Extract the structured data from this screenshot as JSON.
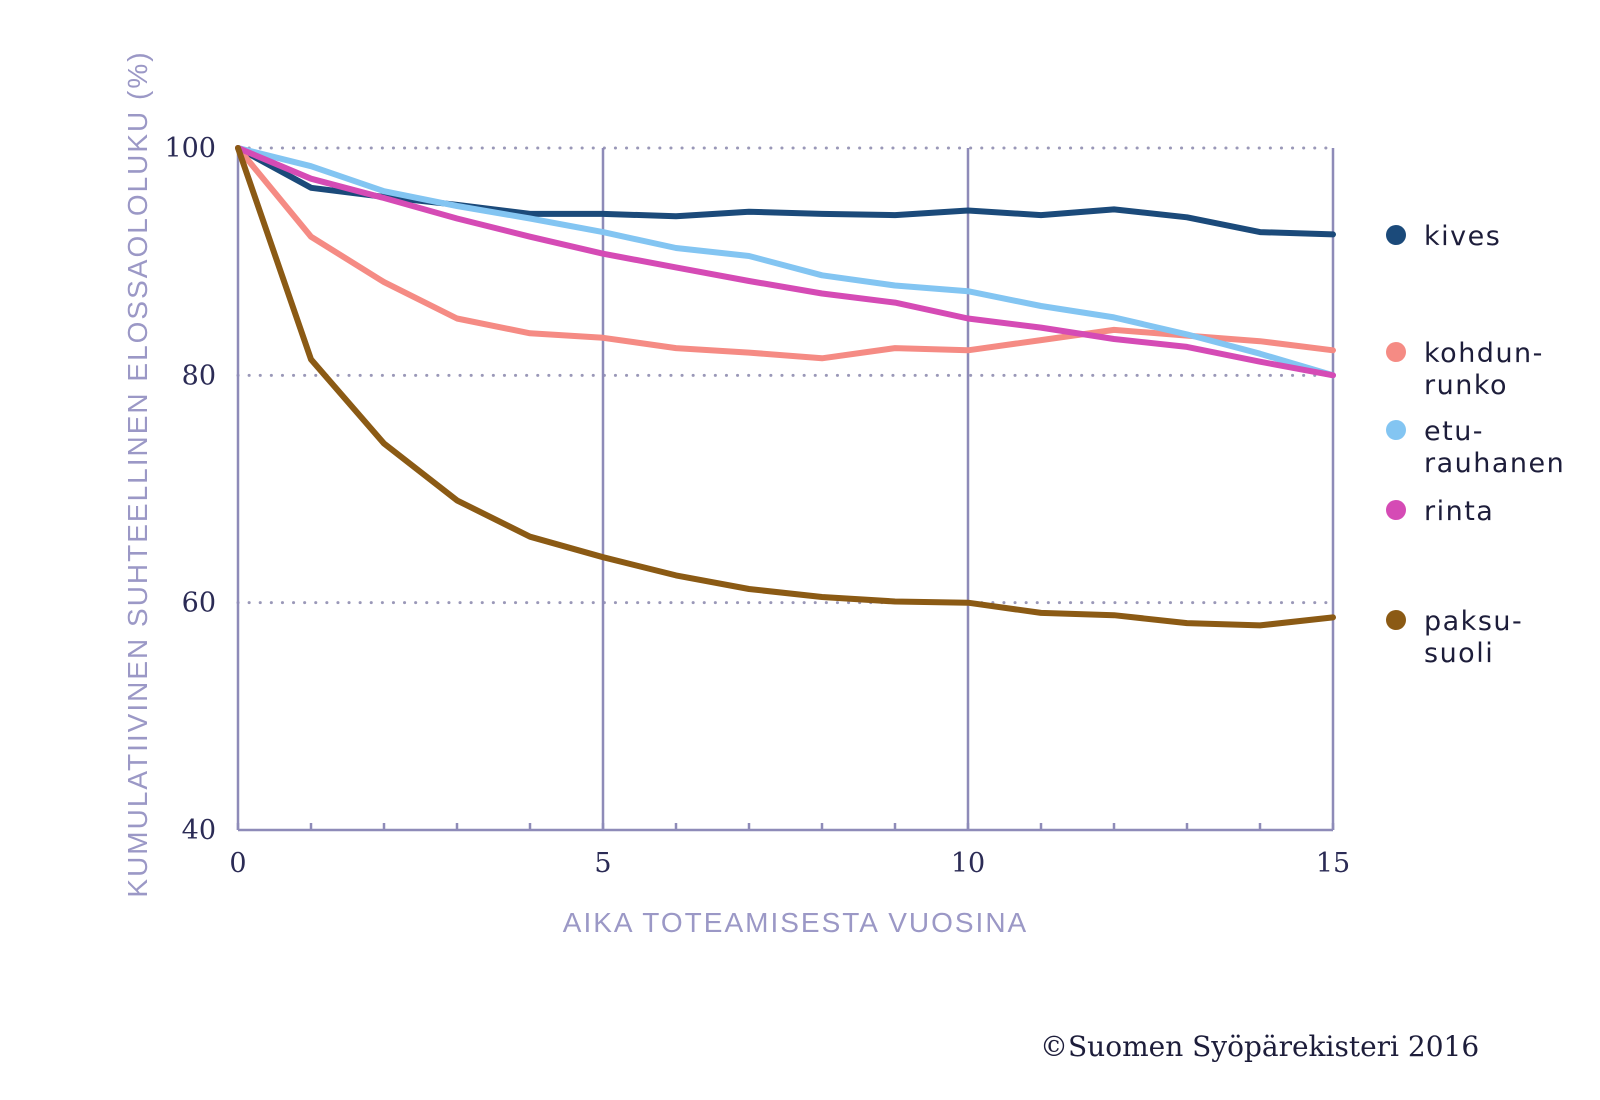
{
  "chart_data": {
    "type": "line",
    "xlabel": "AIKA TOTEAMISESTA VUOSINA",
    "ylabel": "KUMULATIIVINEN SUHTEELLINEN ELOSSAOLOLUKU (%)",
    "xlim": [
      0,
      15
    ],
    "ylim": [
      40,
      100
    ],
    "x_ticks": [
      "0",
      "5",
      "10",
      "15"
    ],
    "y_ticks": [
      "40",
      "60",
      "80",
      "100"
    ],
    "grid": "dotted horizontal at 60, 80, 100; solid vertical at 5, 10, 15",
    "legend_position": "right",
    "x": [
      0,
      1,
      2,
      3,
      4,
      5,
      6,
      7,
      8,
      9,
      10,
      11,
      12,
      13,
      14,
      15
    ],
    "series": [
      {
        "name": "kives",
        "label_lines": [
          "kives"
        ],
        "color": "#1b4a7a",
        "values": [
          100,
          96.5,
          95.7,
          95.0,
          94.2,
          94.2,
          94.0,
          94.4,
          94.2,
          94.1,
          94.5,
          94.1,
          94.6,
          93.9,
          92.6,
          92.4
        ]
      },
      {
        "name": "kohdunrunko",
        "label_lines": [
          "kohdun-",
          "runko"
        ],
        "color": "#f58b84",
        "values": [
          100,
          92.2,
          88.2,
          85.0,
          83.7,
          83.3,
          82.4,
          82.0,
          81.5,
          82.4,
          82.2,
          83.1,
          84.0,
          83.5,
          83.0,
          82.2
        ]
      },
      {
        "name": "eturauhanen",
        "label_lines": [
          "etu-",
          "rauhanen"
        ],
        "color": "#83c5f2",
        "values": [
          100,
          98.4,
          96.2,
          94.9,
          93.8,
          92.6,
          91.2,
          90.5,
          88.8,
          87.9,
          87.4,
          86.1,
          85.1,
          83.6,
          81.9,
          80.0
        ]
      },
      {
        "name": "rinta",
        "label_lines": [
          "rinta"
        ],
        "color": "#d54bb5",
        "values": [
          100,
          97.3,
          95.6,
          93.8,
          92.2,
          90.7,
          89.5,
          88.3,
          87.2,
          86.4,
          85.0,
          84.2,
          83.2,
          82.5,
          81.2,
          80.0
        ]
      },
      {
        "name": "paksusuoli",
        "label_lines": [
          "paksu-",
          "suoli"
        ],
        "color": "#8b5a14",
        "values": [
          100,
          81.4,
          74.0,
          69.0,
          65.8,
          64.0,
          62.4,
          61.2,
          60.5,
          60.1,
          60.0,
          59.1,
          58.9,
          58.2,
          58.0,
          58.7
        ]
      }
    ]
  },
  "credit": "©Suomen Syöpärekisteri 2016",
  "colors": {
    "axis": "#8e8bb8",
    "grid_dots": "#9a98b8",
    "axis_title": "#9b98c6"
  }
}
